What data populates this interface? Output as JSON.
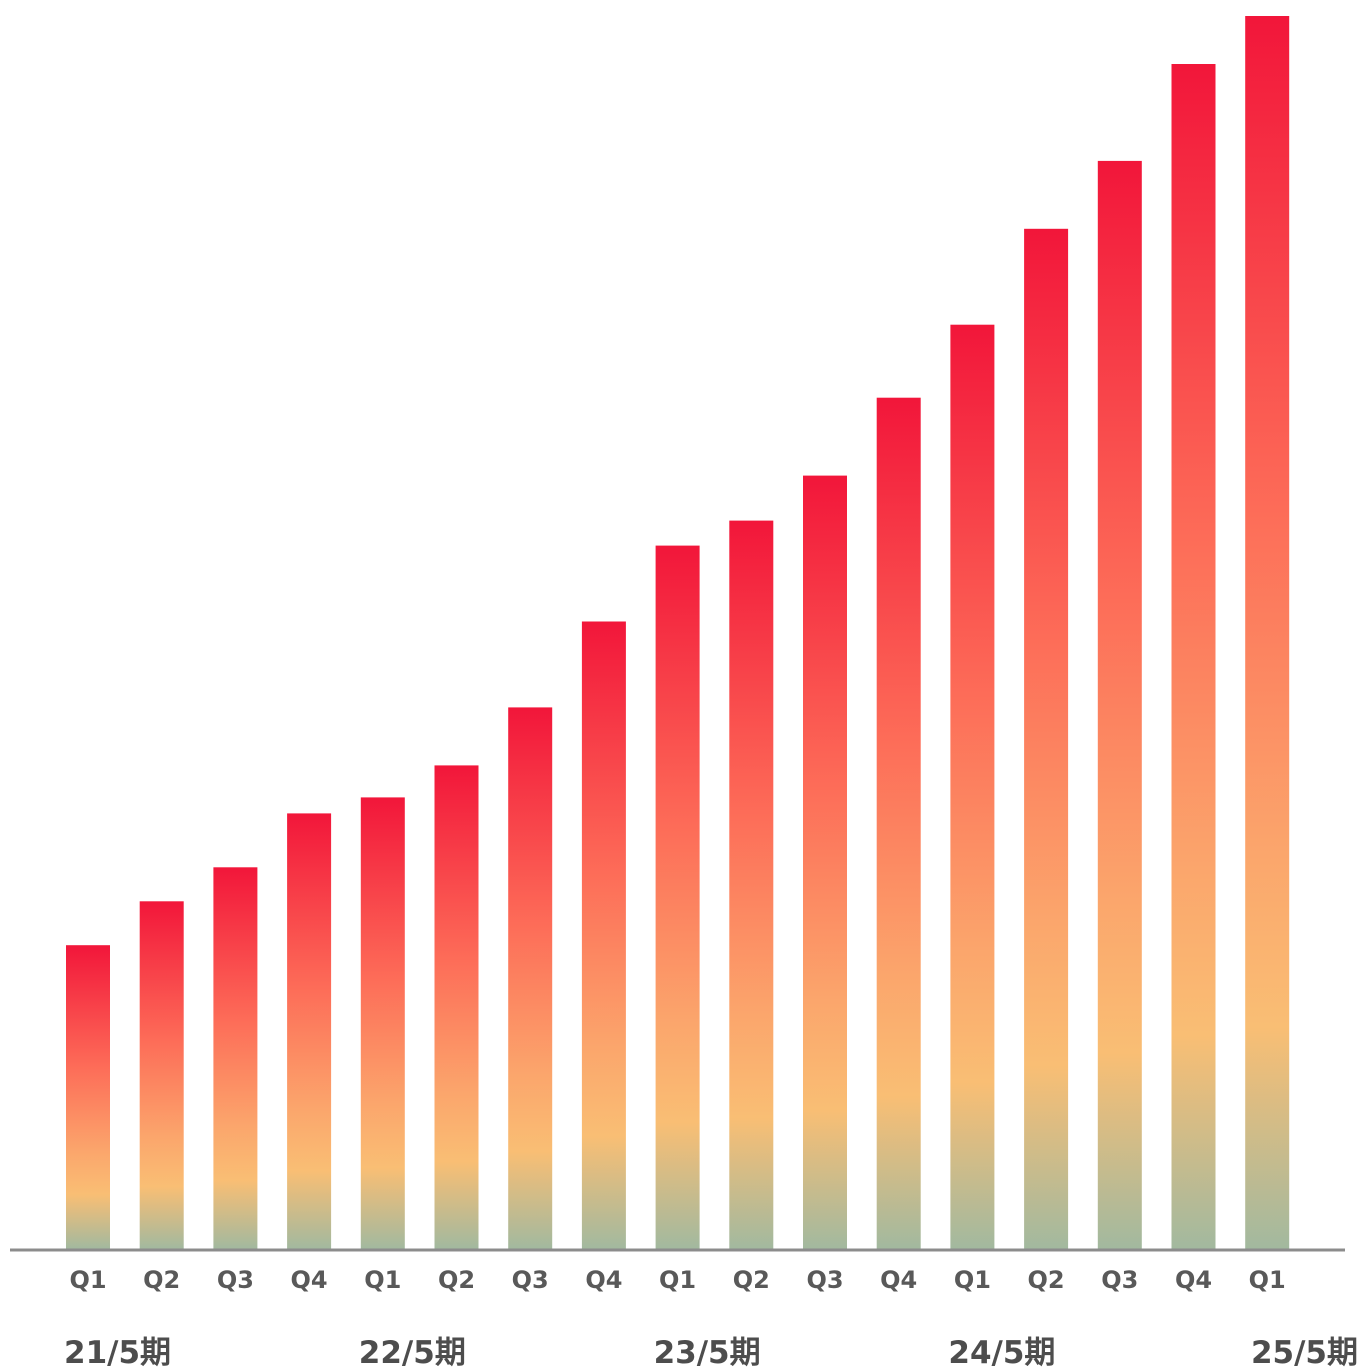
{
  "chart_data": {
    "type": "bar",
    "categories": [
      "Q1",
      "Q2",
      "Q3",
      "Q4",
      "Q1",
      "Q2",
      "Q3",
      "Q4",
      "Q1",
      "Q2",
      "Q3",
      "Q4",
      "Q1",
      "Q2",
      "Q3",
      "Q4",
      "Q1"
    ],
    "values": [
      304,
      348,
      382,
      436,
      452,
      484,
      542,
      628,
      704,
      729,
      774,
      852,
      925,
      1021,
      1089,
      1186,
      1234
    ],
    "groups": [
      {
        "label": "21/5期",
        "start": 0,
        "end": 3
      },
      {
        "label": "22/5期",
        "start": 4,
        "end": 7
      },
      {
        "label": "23/5期",
        "start": 8,
        "end": 11
      },
      {
        "label": "24/5期",
        "start": 12,
        "end": 15
      },
      {
        "label": "25/5期",
        "start": 16,
        "end": 16
      }
    ],
    "title": "",
    "xlabel": "",
    "ylabel": "",
    "ylim": [
      0,
      1234
    ],
    "grid": false,
    "legend": "none",
    "colors": {
      "bar_top": "#f2163a",
      "bar_mid1": "#fd6c58",
      "bar_mid2": "#fba66c",
      "bar_mid3": "#f9be74",
      "bar_bottom": "#a2b99f",
      "axis": "#8c8c8c",
      "tick_text": "#595959",
      "group_text": "#4d4d4d"
    }
  }
}
